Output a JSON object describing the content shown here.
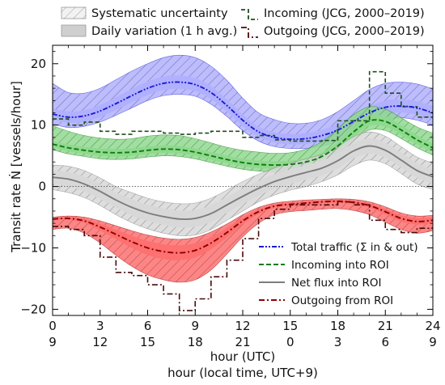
{
  "chart_data": {
    "type": "line",
    "ylabel": "Transit rate Ṅ [vessels/hour]",
    "xlabel": "hour (UTC)",
    "xlabel2": "hour (local time, UTC+9)",
    "xlim": [
      0,
      24
    ],
    "ylim": [
      -21,
      23
    ],
    "xticks": [
      0,
      3,
      6,
      9,
      12,
      15,
      18,
      21,
      24
    ],
    "xtick_labels_utc": [
      "0",
      "3",
      "6",
      "9",
      "12",
      "15",
      "18",
      "21",
      "24"
    ],
    "xtick_labels_local": [
      "9",
      "12",
      "15",
      "18",
      "21",
      "0",
      "3",
      "6",
      "9"
    ],
    "yticks": [
      -20,
      -10,
      0,
      10,
      20
    ],
    "ytick_labels": [
      "−20",
      "−10",
      "0",
      "10",
      "20"
    ],
    "reference_line_y": 0,
    "legend_top_left": {
      "systematic": "Systematic uncertainty",
      "daily": "Daily variation (1 h avg.)"
    },
    "legend_top_right": {
      "incoming_jcg": "Incoming (JCG, 2000–2019)",
      "outgoing_jcg": "Outgoing (JCG, 2000–2019)"
    },
    "legend_bottom_right": {
      "total": "Total traffic (Σ in & out)",
      "incoming": "Incoming into ROI",
      "net": "Net flux into ROI",
      "outgoing": "Outgoing from ROI"
    },
    "colors": {
      "total": "#1a1ad4",
      "total_band": "#b0b0ff",
      "incoming": "#117a11",
      "incoming_band": "#8fd98f",
      "net": "#7d7d7d",
      "net_band": "#d8d8d8",
      "outgoing": "#8b0000",
      "outgoing_band": "#ff7070",
      "jcg_in": "#1f4d1f",
      "jcg_out": "#4a0a0a"
    },
    "series": [
      {
        "name": "Total traffic (Σ in & out)",
        "x": [
          0,
          1,
          2,
          3,
          4,
          5,
          6,
          7,
          8,
          9,
          10,
          11,
          12,
          13,
          14,
          15,
          16,
          17,
          18,
          19,
          20,
          21,
          22,
          23,
          24
        ],
        "y": [
          11.8,
          11.3,
          11.5,
          12.3,
          13.5,
          14.8,
          16.0,
          16.8,
          17.0,
          16.6,
          15.3,
          13.2,
          10.8,
          8.9,
          8.0,
          7.7,
          7.8,
          8.3,
          9.2,
          10.6,
          12.0,
          12.9,
          13.1,
          12.8,
          12.0
        ],
        "band_lo": [
          10.2,
          9.6,
          9.8,
          10.5,
          11.6,
          12.8,
          14.0,
          14.8,
          15.0,
          14.7,
          13.4,
          11.4,
          9.1,
          7.4,
          6.5,
          6.2,
          6.2,
          6.6,
          7.4,
          8.8,
          10.2,
          10.9,
          11.2,
          10.8,
          10.0
        ],
        "band_hi": [
          16.8,
          15.3,
          15.2,
          16.0,
          17.4,
          18.8,
          20.0,
          21.0,
          21.4,
          21.0,
          19.6,
          17.3,
          14.4,
          12.0,
          10.9,
          10.3,
          10.3,
          10.9,
          12.2,
          14.0,
          15.8,
          16.8,
          17.0,
          16.7,
          15.9
        ]
      },
      {
        "name": "Incoming into ROI",
        "x": [
          0,
          1,
          2,
          3,
          4,
          5,
          6,
          7,
          8,
          9,
          10,
          11,
          12,
          13,
          14,
          15,
          16,
          17,
          18,
          19,
          20,
          21,
          22,
          23,
          24
        ],
        "y": [
          6.9,
          6.3,
          5.9,
          5.6,
          5.5,
          5.6,
          5.9,
          6.1,
          6.0,
          5.6,
          5.0,
          4.4,
          3.9,
          3.6,
          3.5,
          3.6,
          4.0,
          4.9,
          6.6,
          8.9,
          10.7,
          10.6,
          9.2,
          7.6,
          6.3
        ],
        "band_lo": [
          6.0,
          5.3,
          4.9,
          4.5,
          4.4,
          4.5,
          4.8,
          5.0,
          4.9,
          4.5,
          3.9,
          3.3,
          2.8,
          2.5,
          2.4,
          2.5,
          2.9,
          3.8,
          5.4,
          7.5,
          9.2,
          9.1,
          7.8,
          6.3,
          5.1
        ],
        "band_hi": [
          9.9,
          9.0,
          8.3,
          7.9,
          7.7,
          7.8,
          8.2,
          8.4,
          8.3,
          7.8,
          7.1,
          6.4,
          5.9,
          5.6,
          5.4,
          5.5,
          6.1,
          7.3,
          9.4,
          11.7,
          13.0,
          12.6,
          11.2,
          9.7,
          8.7
        ]
      },
      {
        "name": "Net flux into ROI",
        "x": [
          0,
          1,
          2,
          3,
          4,
          5,
          6,
          7,
          8,
          9,
          10,
          11,
          12,
          13,
          14,
          15,
          16,
          17,
          18,
          19,
          20,
          21,
          22,
          23,
          24
        ],
        "y": [
          1.5,
          1.2,
          0.4,
          -0.8,
          -2.2,
          -3.4,
          -4.3,
          -4.9,
          -5.3,
          -5.2,
          -4.4,
          -3.0,
          -1.6,
          -0.3,
          0.8,
          1.6,
          2.3,
          3.0,
          4.2,
          5.8,
          6.6,
          5.9,
          4.3,
          2.6,
          1.6
        ],
        "band_lo": [
          -0.5,
          -1.0,
          -1.8,
          -3.1,
          -4.6,
          -5.9,
          -6.9,
          -7.6,
          -8.0,
          -7.9,
          -7.0,
          -5.5,
          -4.0,
          -2.5,
          -1.4,
          -0.6,
          0.0,
          0.8,
          1.9,
          3.4,
          4.3,
          3.7,
          2.1,
          0.4,
          -0.5
        ],
        "band_hi": [
          3.5,
          3.3,
          2.6,
          1.4,
          0.0,
          -1.0,
          -1.9,
          -2.5,
          -2.8,
          -2.7,
          -1.9,
          -0.6,
          0.8,
          2.0,
          3.0,
          3.8,
          4.5,
          5.2,
          6.5,
          8.1,
          8.9,
          8.2,
          6.5,
          4.8,
          3.8
        ]
      },
      {
        "name": "Outgoing from ROI",
        "x": [
          0,
          1,
          2,
          3,
          4,
          5,
          6,
          7,
          8,
          9,
          10,
          11,
          12,
          13,
          14,
          15,
          16,
          17,
          18,
          19,
          20,
          21,
          22,
          23,
          24
        ],
        "y": [
          -5.3,
          -5.2,
          -5.6,
          -6.6,
          -7.8,
          -9.0,
          -10.0,
          -10.6,
          -10.8,
          -10.4,
          -9.2,
          -7.5,
          -5.6,
          -4.1,
          -3.2,
          -2.9,
          -2.7,
          -2.5,
          -2.4,
          -2.6,
          -3.1,
          -4.1,
          -5.2,
          -5.7,
          -5.5
        ],
        "band_lo": [
          -7.0,
          -6.8,
          -7.6,
          -9.2,
          -11.2,
          -13.0,
          -14.4,
          -15.2,
          -15.6,
          -15.2,
          -13.6,
          -11.0,
          -8.2,
          -6.0,
          -4.6,
          -4.1,
          -3.9,
          -3.7,
          -3.6,
          -3.9,
          -4.6,
          -5.8,
          -7.0,
          -7.6,
          -7.2
        ],
        "band_hi": [
          -5.0,
          -4.8,
          -5.0,
          -5.6,
          -6.4,
          -7.2,
          -7.9,
          -8.4,
          -8.6,
          -8.3,
          -7.4,
          -6.1,
          -4.6,
          -3.4,
          -2.7,
          -2.4,
          -2.2,
          -2.1,
          -2.0,
          -2.1,
          -2.5,
          -3.3,
          -4.3,
          -4.8,
          -4.7
        ]
      },
      {
        "name": "Incoming (JCG, 2000–2019)",
        "kind": "step",
        "x": [
          0,
          1,
          2,
          3,
          4,
          5,
          6,
          7,
          8,
          9,
          10,
          11,
          12,
          13,
          14,
          15,
          16,
          17,
          18,
          19,
          20,
          21,
          22,
          23,
          24
        ],
        "y": [
          11,
          10,
          10.5,
          9,
          8.5,
          9,
          9,
          8.7,
          8.5,
          8.7,
          9,
          9,
          8,
          8.3,
          7.6,
          7.4,
          7.4,
          7.5,
          10.7,
          10.7,
          18.7,
          15.2,
          13,
          11.3,
          11.3
        ]
      },
      {
        "name": "Outgoing (JCG, 2000–2019)",
        "kind": "step",
        "x": [
          0,
          1,
          2,
          3,
          4,
          5,
          6,
          7,
          8,
          9,
          10,
          11,
          12,
          13,
          14,
          15,
          16,
          17,
          18,
          19,
          20,
          21,
          22,
          23,
          24
        ],
        "y": [
          -6.5,
          -7,
          -8,
          -11.5,
          -14,
          -14.5,
          -16,
          -17.5,
          -20.2,
          -18.3,
          -14.7,
          -12,
          -8.5,
          -5.2,
          -3.7,
          -3,
          -3,
          -3,
          -2.5,
          -3,
          -5.5,
          -7,
          -7.5,
          -6.8,
          -6.8
        ]
      }
    ]
  }
}
